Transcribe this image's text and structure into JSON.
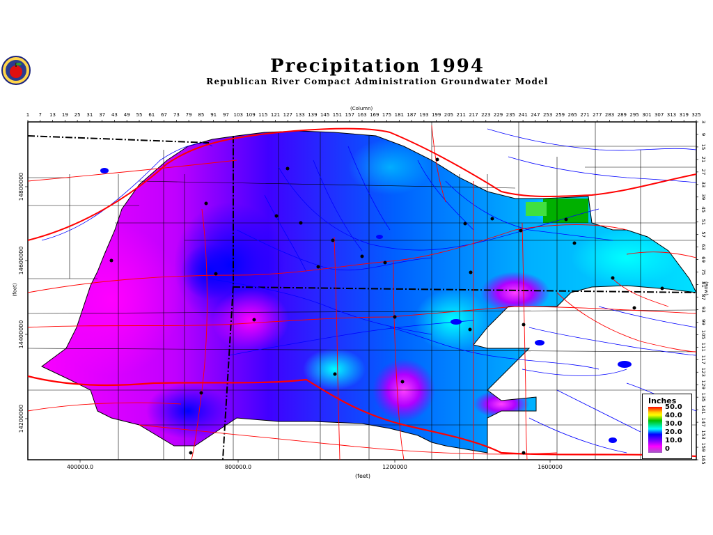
{
  "title": "Precipitation 1994",
  "subtitle": "Republican River Compact Administration Groundwater Model",
  "axes": {
    "column_title": "(Column)",
    "row_title": "(Row)",
    "x_feet_title": "(feet)",
    "y_feet_title": "(feet)",
    "column_ticks": [
      "1",
      "7",
      "13",
      "19",
      "25",
      "31",
      "37",
      "43",
      "49",
      "55",
      "61",
      "67",
      "73",
      "79",
      "85",
      "91",
      "97",
      "103",
      "109",
      "115",
      "121",
      "127",
      "133",
      "139",
      "145",
      "151",
      "157",
      "163",
      "169",
      "175",
      "181",
      "187",
      "193",
      "199",
      "205",
      "211",
      "217",
      "223",
      "229",
      "235",
      "241",
      "247",
      "253",
      "259",
      "265",
      "271",
      "277",
      "283",
      "289",
      "295",
      "301",
      "307",
      "313",
      "319",
      "325"
    ],
    "row_ticks": [
      "3",
      "9",
      "15",
      "21",
      "27",
      "33",
      "39",
      "45",
      "51",
      "57",
      "63",
      "69",
      "75",
      "81",
      "87",
      "93",
      "99",
      "105",
      "111",
      "117",
      "123",
      "129",
      "135",
      "141",
      "147",
      "153",
      "159",
      "165"
    ],
    "x_feet_ticks": [
      "400000.0",
      "800000.0",
      "1200000",
      "1600000"
    ],
    "y_feet_ticks": [
      "14800000",
      "14600000",
      "14400000",
      "14200000"
    ]
  },
  "legend": {
    "title": "Inches",
    "labels": [
      "50.0",
      "40.0",
      "30.0",
      "20.0",
      "10.0",
      "0"
    ]
  },
  "colors": {
    "frame": "#000000",
    "roads": "#ff0000",
    "rivers": "#0000ff",
    "magenta": "#ff00ff",
    "purple": "#8000ff",
    "blue": "#0000ff",
    "cyan": "#00ffff",
    "green": "#00c000"
  }
}
